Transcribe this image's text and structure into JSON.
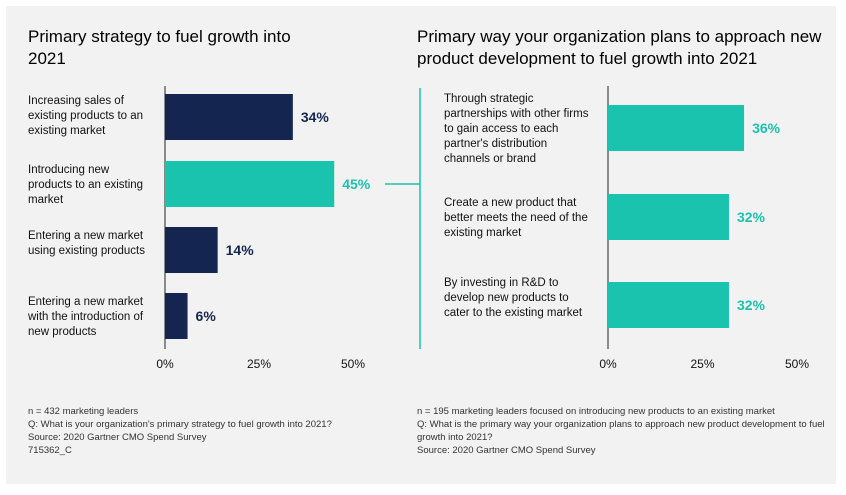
{
  "colors": {
    "navy": "#14264f",
    "teal": "#1ac3ae",
    "axis": "#222222",
    "connector": "#1ac3ae"
  },
  "chart_data": [
    {
      "type": "bar",
      "orientation": "horizontal",
      "title": "Primary strategy to fuel growth into 2021",
      "categories": [
        "Increasing sales of existing products to an existing market",
        "Introducing new products to an existing market",
        "Entering a new market using existing products",
        "Entering a new market with the introduction of new products"
      ],
      "values": [
        34,
        45,
        14,
        6
      ],
      "value_labels": [
        "34%",
        "45%",
        "14%",
        "6%"
      ],
      "highlight_index": 1,
      "xlim": [
        0,
        50
      ],
      "xticks": [
        0,
        25,
        50
      ],
      "xtick_labels": [
        "0%",
        "25%",
        "50%"
      ],
      "footer": [
        "n = 432 marketing leaders",
        "Q: What is your organization's primary strategy to fuel growth into 2021?",
        "Source: 2020 Gartner CMO Spend Survey",
        "715362_C"
      ]
    },
    {
      "type": "bar",
      "orientation": "horizontal",
      "title": "Primary way your organization plans to approach new product development to fuel growth into 2021",
      "categories": [
        "Through strategic partnerships with other firms to gain access to each partner's distribution channels or brand",
        "Create a new product that better meets the need of the existing market",
        "By investing in R&D to develop new products to cater to the existing market"
      ],
      "values": [
        36,
        32,
        32
      ],
      "value_labels": [
        "36%",
        "32%",
        "32%"
      ],
      "xlim": [
        0,
        50
      ],
      "xticks": [
        0,
        25,
        50
      ],
      "xtick_labels": [
        "0%",
        "25%",
        "50%"
      ],
      "footer": [
        "n = 195 marketing leaders focused on introducing new products to an existing market",
        "Q: What is the primary way your organization plans to approach new product development to fuel growth into 2021?",
        "Source: 2020 Gartner CMO Spend Survey"
      ]
    }
  ]
}
